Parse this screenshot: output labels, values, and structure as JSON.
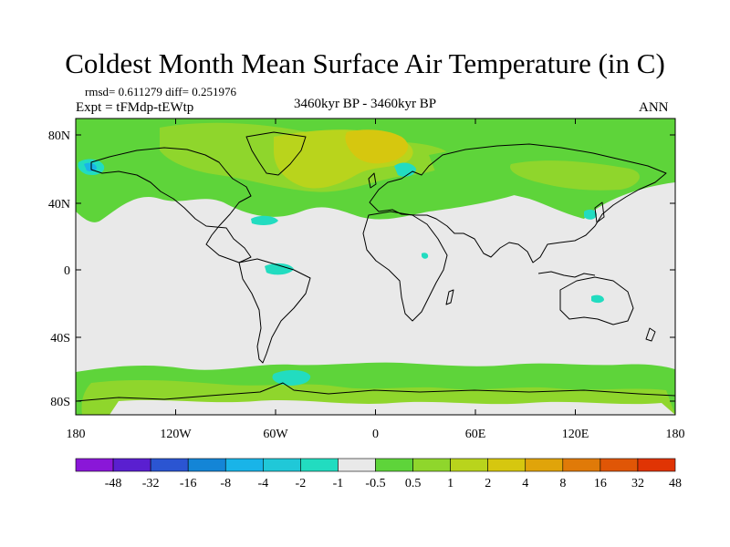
{
  "title": "Coldest Month Mean Surface Air Temperature (in C)",
  "stats": "rmsd= 0.611279  diff= 0.251976",
  "experiment": "Expt = tFMdp-tEWtp",
  "period": "3460kyr BP - 3460kyr BP",
  "season": "ANN",
  "lat_ticks": [
    "80N",
    "40N",
    "0",
    "40S",
    "80S"
  ],
  "lon_ticks": [
    "180",
    "120W",
    "60W",
    "0",
    "60E",
    "120E",
    "180"
  ],
  "colorbar": {
    "colors": [
      "#8a17d8",
      "#5a1fd0",
      "#2b55d2",
      "#1485d6",
      "#19b4e8",
      "#20c8d8",
      "#22dcc0",
      "#e9e9e9",
      "#5ed43a",
      "#8fd62c",
      "#b9d41c",
      "#d6c70f",
      "#e0a40a",
      "#e07a08",
      "#e05606",
      "#e03404"
    ],
    "labels": [
      "-48",
      "-32",
      "-16",
      "-8",
      "-4",
      "-2",
      "-1",
      "-0.5",
      "0.5",
      "1",
      "2",
      "4",
      "8",
      "16",
      "32",
      "48"
    ]
  }
}
